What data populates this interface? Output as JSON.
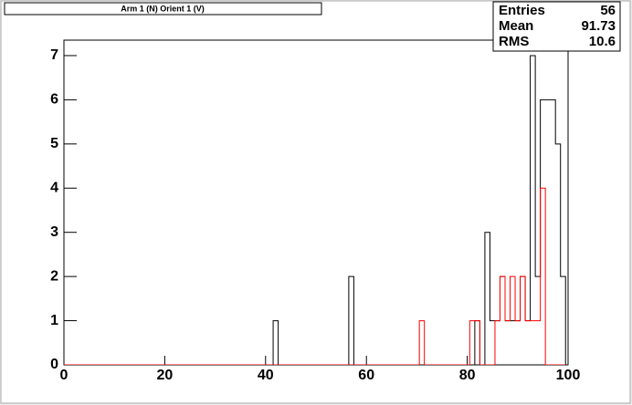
{
  "chart_data": {
    "type": "histogram",
    "title": "Arm 1 (N) Orient 1 (V)",
    "bins": [
      -0.5,
      0.5,
      1.5,
      2.5,
      3.5,
      4.5,
      5.5,
      6.5,
      7.5,
      8.5,
      9.5,
      10.5,
      11.5,
      12.5,
      13.5,
      14.5,
      15.5,
      16.5,
      17.5,
      18.5,
      19.5,
      20.5,
      21.5,
      22.5,
      23.5,
      24.5,
      25.5,
      26.5,
      27.5,
      28.5,
      29.5,
      30.5,
      31.5,
      32.5,
      33.5,
      34.5,
      35.5,
      36.5,
      37.5,
      38.5,
      39.5,
      40.5,
      41.5,
      42.5,
      43.5,
      44.5,
      45.5,
      46.5,
      47.5,
      48.5,
      49.5,
      50.5,
      51.5,
      52.5,
      53.5,
      54.5,
      55.5,
      56.5,
      57.5,
      58.5,
      59.5,
      60.5,
      61.5,
      62.5,
      63.5,
      64.5,
      65.5,
      66.5,
      67.5,
      68.5,
      69.5,
      70.5,
      71.5,
      72.5,
      73.5,
      74.5,
      75.5,
      76.5,
      77.5,
      78.5,
      79.5,
      80.5,
      81.5,
      82.5,
      83.5,
      84.5,
      85.5,
      86.5,
      87.5,
      88.5,
      89.5,
      90.5,
      91.5,
      92.5,
      93.5,
      94.5,
      95.5,
      96.5,
      97.5,
      98.5,
      99.5
    ],
    "series": [
      {
        "color": "#000000",
        "values": [
          0,
          0,
          0,
          0,
          0,
          0,
          0,
          0,
          0,
          0,
          0,
          0,
          0,
          0,
          0,
          0,
          0,
          0,
          0,
          0,
          0,
          0,
          0,
          0,
          0,
          0,
          0,
          0,
          0,
          0,
          0,
          0,
          0,
          0,
          0,
          0,
          0,
          0,
          0,
          0,
          0,
          0,
          1,
          0,
          0,
          0,
          0,
          0,
          0,
          0,
          0,
          0,
          0,
          0,
          0,
          0,
          0,
          2,
          0,
          0,
          0,
          0,
          0,
          0,
          0,
          0,
          0,
          0,
          0,
          0,
          0,
          0,
          0,
          0,
          0,
          0,
          0,
          0,
          0,
          0,
          0,
          0,
          1,
          0,
          3,
          1,
          1,
          2,
          1,
          1,
          1,
          2,
          1,
          7,
          2,
          6,
          6,
          6,
          5,
          2
        ]
      },
      {
        "color": "#ff0000",
        "values": [
          0,
          0,
          0,
          0,
          0,
          0,
          0,
          0,
          0,
          0,
          0,
          0,
          0,
          0,
          0,
          0,
          0,
          0,
          0,
          0,
          0,
          0,
          0,
          0,
          0,
          0,
          0,
          0,
          0,
          0,
          0,
          0,
          0,
          0,
          0,
          0,
          0,
          0,
          0,
          0,
          0,
          0,
          0,
          0,
          0,
          0,
          0,
          0,
          0,
          0,
          0,
          0,
          0,
          0,
          0,
          0,
          0,
          0,
          0,
          0,
          0,
          0,
          0,
          0,
          0,
          0,
          0,
          0,
          0,
          0,
          0,
          1,
          0,
          0,
          0,
          0,
          0,
          0,
          0,
          0,
          0,
          1,
          1,
          0,
          0,
          0,
          1,
          2,
          1,
          2,
          1,
          2,
          1,
          1,
          1,
          4,
          0,
          0,
          0,
          0
        ]
      }
    ],
    "xlim": [
      0,
      100
    ],
    "xticks": [
      0,
      20,
      40,
      60,
      80,
      100
    ],
    "ylim": [
      0,
      7.35
    ],
    "yticks": [
      0,
      1,
      2,
      3,
      4,
      5,
      6,
      7
    ],
    "stats": [
      {
        "label": "Entries",
        "value": 56
      },
      {
        "label": "Mean",
        "value": 91.73
      },
      {
        "label": "RMS",
        "value": 10.6
      }
    ]
  }
}
